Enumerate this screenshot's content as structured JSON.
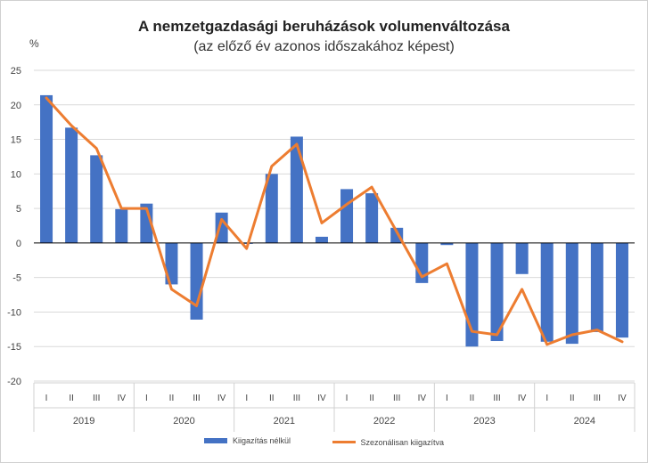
{
  "title": "A nemzetgazdasági beruházások volumenváltozása",
  "subtitle": "(az előző év azonos időszakához képest)",
  "colors": {
    "bar": "#4472C4",
    "line": "#ED7D31"
  },
  "chart_data": {
    "type": "bar",
    "ylabel": "%",
    "ylim": [
      -20,
      25
    ],
    "yticks": [
      25,
      20,
      15,
      10,
      5,
      0,
      -5,
      -10,
      -15,
      -20
    ],
    "quarters": [
      "I",
      "II",
      "III",
      "IV",
      "I",
      "II",
      "III",
      "IV",
      "I",
      "II",
      "III",
      "IV",
      "I",
      "II",
      "III",
      "IV",
      "I",
      "II",
      "III",
      "IV",
      "I",
      "II",
      "III",
      "IV"
    ],
    "years": [
      "2019",
      "2020",
      "2021",
      "2022",
      "2023",
      "2024"
    ],
    "series": [
      {
        "name": "Kiigazítás nélkül",
        "type": "bar",
        "values": [
          21.4,
          16.7,
          12.7,
          4.9,
          5.7,
          -6.0,
          -11.1,
          4.4,
          -0.1,
          10.0,
          15.4,
          0.9,
          7.8,
          7.2,
          2.2,
          -5.8,
          -0.3,
          -15.0,
          -14.2,
          -4.5,
          -14.3,
          -14.6,
          -12.9,
          -13.7
        ]
      },
      {
        "name": "Szezonálisan kiigazítva",
        "type": "line",
        "values": [
          21.0,
          17.0,
          13.7,
          5.0,
          5.0,
          -6.7,
          -9.1,
          3.4,
          -0.8,
          11.1,
          14.3,
          2.9,
          5.6,
          8.1,
          1.6,
          -4.9,
          -3.0,
          -12.8,
          -13.3,
          -6.7,
          -14.7,
          -13.3,
          -12.6,
          -14.3
        ]
      }
    ],
    "grid": true,
    "legend": "bottom"
  }
}
